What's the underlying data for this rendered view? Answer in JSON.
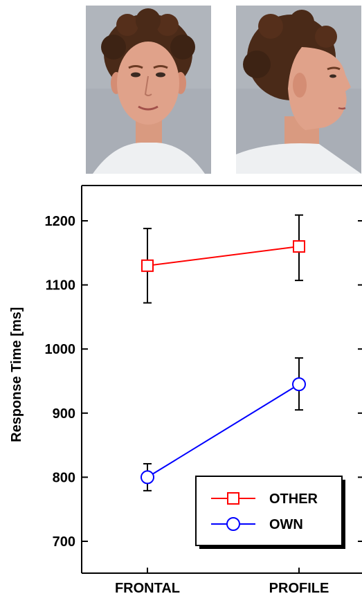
{
  "photos": [
    {
      "label": "frontal-face-photo"
    },
    {
      "label": "profile-face-photo"
    }
  ],
  "chart_data": {
    "type": "line",
    "title": "",
    "xlabel": "",
    "ylabel": "Response Time [ms]",
    "categories": [
      "FRONTAL",
      "PROFILE"
    ],
    "ylim": [
      650,
      1250
    ],
    "yticks": [
      700,
      800,
      900,
      1000,
      1100,
      1200
    ],
    "grid": false,
    "legend_position": "bottom-right",
    "series": [
      {
        "name": "OTHER",
        "color": "#ff0000",
        "marker": "square",
        "values": [
          1130,
          1160
        ],
        "error_low": [
          1072,
          1107
        ],
        "error_high": [
          1188,
          1209
        ]
      },
      {
        "name": "OWN",
        "color": "#0000ff",
        "marker": "circle",
        "values": [
          800,
          945
        ],
        "error_low": [
          779,
          905
        ],
        "error_high": [
          821,
          986
        ]
      }
    ]
  }
}
